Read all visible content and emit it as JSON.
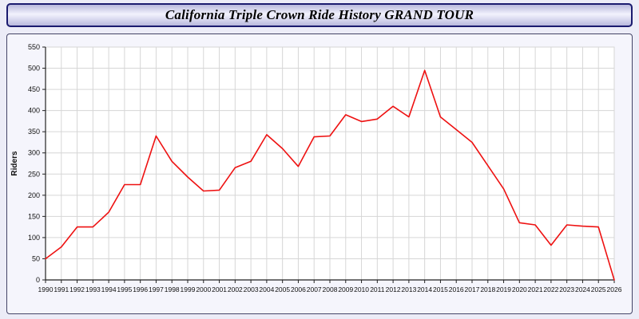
{
  "title": "California Triple Crown Ride History GRAND TOUR",
  "chart_data": {
    "type": "line",
    "title": "California Triple Crown Ride History GRAND TOUR",
    "xlabel": "",
    "ylabel": "Riders",
    "ylim": [
      0,
      550
    ],
    "ytick_step": 50,
    "grid": true,
    "legend_position": "none",
    "categories": [
      1990,
      1991,
      1992,
      1993,
      1994,
      1995,
      1996,
      1997,
      1998,
      1999,
      2000,
      2001,
      2002,
      2003,
      2004,
      2005,
      2006,
      2007,
      2008,
      2009,
      2010,
      2011,
      2012,
      2013,
      2014,
      2015,
      2016,
      2017,
      2018,
      2019,
      2020,
      2021,
      2022,
      2023,
      2024,
      2025,
      2026
    ],
    "series": [
      {
        "name": "Riders",
        "values": [
          50,
          78,
          125,
          125,
          160,
          225,
          225,
          340,
          280,
          243,
          210,
          212,
          265,
          280,
          343,
          310,
          268,
          338,
          340,
          390,
          374,
          380,
          410,
          385,
          495,
          385,
          355,
          325,
          270,
          215,
          135,
          130,
          82,
          130,
          127,
          125,
          0
        ]
      }
    ]
  },
  "colors": {
    "line": "#ee1111",
    "grid": "#d6d6d6",
    "axis": "#222222",
    "plot_bg": "#ffffff",
    "tick_label": "#111111"
  }
}
